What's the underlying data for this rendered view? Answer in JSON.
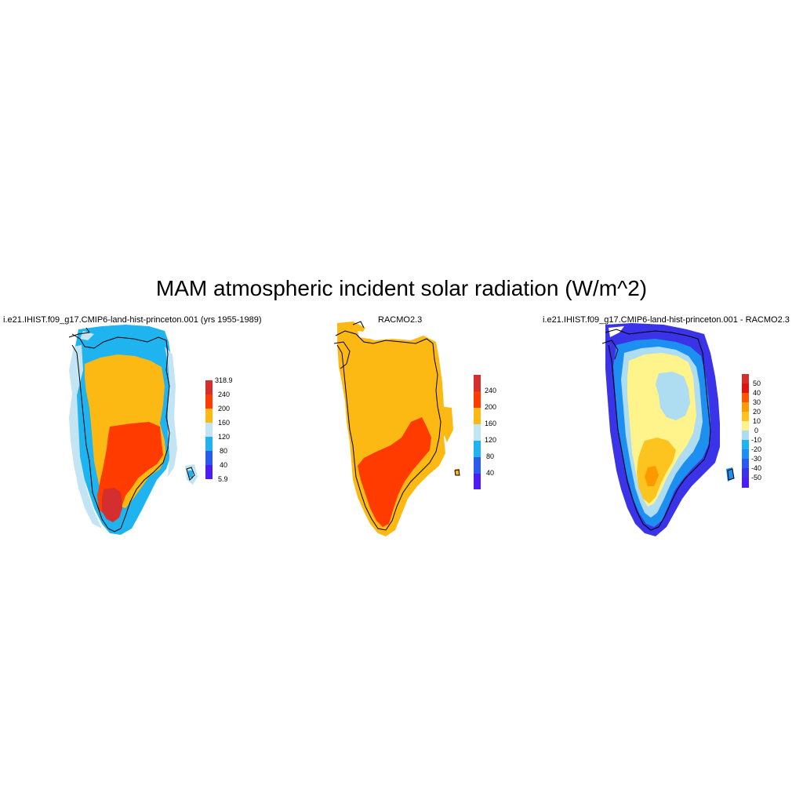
{
  "figure": {
    "title": "MAM atmospheric incident solar radiation (W/m^2)"
  },
  "panels": [
    {
      "id": "model",
      "title": "i.e21.IHIST.f09_g17.CMIP6-land-hist-princeton.001 (yrs 1955-1989)",
      "colorbar": {
        "labels": [
          "318.9",
          "240",
          "200",
          "160",
          "120",
          "80",
          "40",
          "5.9"
        ],
        "colors": [
          "#d42e2e",
          "#ff3b00",
          "#fdb913",
          "#c3e4f3",
          "#1fb4ef",
          "#2b5bee",
          "#4d1bf4"
        ]
      }
    },
    {
      "id": "obs",
      "title": "RACMO2.3",
      "colorbar": {
        "labels": [
          "240",
          "200",
          "160",
          "120",
          "80",
          "40"
        ],
        "colors": [
          "#d42e2e",
          "#ff3b00",
          "#fdb913",
          "#c3e4f3",
          "#1fb4ef",
          "#2b5bee",
          "#4d1bf4"
        ]
      }
    },
    {
      "id": "diff",
      "title": "i.e21.IHIST.f09_g17.CMIP6-land-hist-princeton.001 - RACMO2.3",
      "colorbar": {
        "labels": [
          "50",
          "40",
          "30",
          "20",
          "10",
          "0",
          "-10",
          "-20",
          "-30",
          "-40",
          "-50"
        ],
        "colors": [
          "#d42e2e",
          "#e0130f",
          "#ff5500",
          "#fd9a00",
          "#fdc31f",
          "#fff38c",
          "#aedcf0",
          "#1fb4ef",
          "#1d8ff0",
          "#2b5bee",
          "#3a33e8",
          "#4d1bf4"
        ]
      }
    }
  ]
}
